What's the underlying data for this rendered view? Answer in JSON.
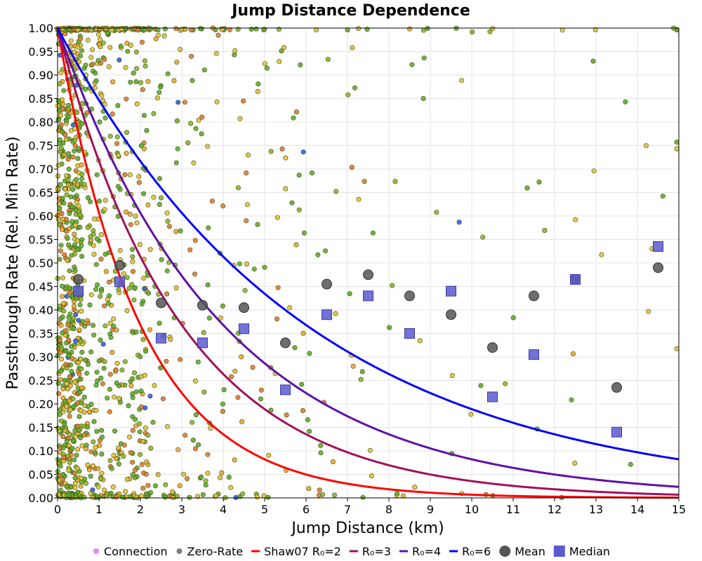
{
  "chart_data": {
    "type": "scatter",
    "title": "Jump Distance Dependence",
    "xlabel": "Jump Distance (km)",
    "ylabel": "Passthrough Rate (Rel. Min Rate)",
    "xlim": [
      0,
      15
    ],
    "ylim": [
      0,
      1
    ],
    "xticks": [
      "0",
      "1",
      "2",
      "3",
      "4",
      "5",
      "6",
      "7",
      "8",
      "9",
      "10",
      "11",
      "12",
      "13",
      "14",
      "15"
    ],
    "yticks": [
      "0.00",
      "0.05",
      "0.10",
      "0.15",
      "0.20",
      "0.25",
      "0.30",
      "0.35",
      "0.40",
      "0.45",
      "0.50",
      "0.55",
      "0.60",
      "0.65",
      "0.70",
      "0.75",
      "0.80",
      "0.85",
      "0.90",
      "0.95",
      "1.00"
    ],
    "grid": true,
    "legend_position": "bottom",
    "legend": [
      {
        "label": "Connection",
        "kind": "dot",
        "color": "#ee82ee"
      },
      {
        "label": "Zero-Rate",
        "kind": "dot",
        "color": "#808080"
      },
      {
        "label": "Shaw07 R₀=2",
        "kind": "line",
        "color": "#ff0000"
      },
      {
        "label": "R₀=3",
        "kind": "line",
        "color": "#a0105a"
      },
      {
        "label": "R₀=4",
        "kind": "line",
        "color": "#6010a8"
      },
      {
        "label": "R₀=6",
        "kind": "line",
        "color": "#0000ff"
      },
      {
        "label": "Mean",
        "kind": "circle",
        "color": "#555555"
      },
      {
        "label": "Median",
        "kind": "square",
        "color": "#5b5bd0"
      }
    ],
    "curves": [
      {
        "name": "Shaw07 R₀=2",
        "r0": 2,
        "color": "#ff0000"
      },
      {
        "name": "R₀=3",
        "r0": 3,
        "color": "#a0105a"
      },
      {
        "name": "R₀=4",
        "r0": 4,
        "color": "#6010a8"
      },
      {
        "name": "R₀=6",
        "r0": 6,
        "color": "#0000ff"
      }
    ],
    "mean": {
      "x": [
        0.5,
        1.5,
        2.5,
        3.5,
        4.5,
        5.5,
        6.5,
        7.5,
        8.5,
        9.5,
        10.5,
        11.5,
        12.5,
        13.5,
        14.5
      ],
      "y": [
        0.465,
        0.495,
        0.415,
        0.41,
        0.405,
        0.33,
        0.455,
        0.475,
        0.43,
        0.39,
        0.32,
        0.43,
        0.465,
        0.235,
        0.49
      ]
    },
    "median": {
      "x": [
        0.5,
        1.5,
        2.5,
        3.5,
        4.5,
        5.5,
        6.5,
        7.5,
        8.5,
        9.5,
        10.5,
        11.5,
        12.5,
        13.5,
        14.5
      ],
      "y": [
        0.44,
        0.46,
        0.34,
        0.33,
        0.36,
        0.23,
        0.39,
        0.43,
        0.35,
        0.44,
        0.215,
        0.305,
        0.465,
        0.14,
        0.535
      ]
    },
    "scatter_note": "Thousands of individual measurements colored green/yellow/orange/blue by rate; dense near x=0."
  }
}
